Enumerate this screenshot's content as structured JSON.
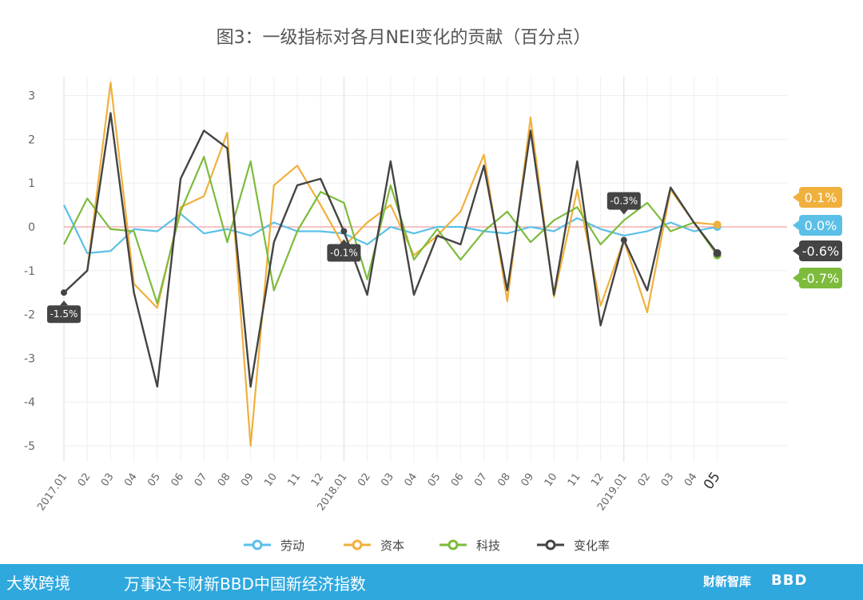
{
  "chart_data": {
    "type": "line",
    "title": "图3：一级指标对各月NEI变化的贡献（百分点）",
    "categories": [
      "2017.01",
      "02",
      "03",
      "04",
      "05",
      "06",
      "07",
      "08",
      "09",
      "10",
      "11",
      "12",
      "2018.01",
      "02",
      "03",
      "04",
      "05",
      "06",
      "07",
      "08",
      "09",
      "10",
      "11",
      "12",
      "2019.01",
      "02",
      "03",
      "04",
      "05"
    ],
    "ylim": [
      -5.4,
      3.4
    ],
    "yticks": [
      3,
      2,
      1,
      0,
      -1,
      -2,
      -3,
      -4,
      -5
    ],
    "xlabel": "",
    "ylabel": "",
    "grid": true,
    "legend_position": "bottom",
    "series": [
      {
        "name": "劳动",
        "color": "#5bc0e8",
        "values": [
          0.5,
          -0.6,
          -0.55,
          -0.05,
          -0.1,
          0.3,
          -0.15,
          -0.05,
          -0.2,
          0.1,
          -0.1,
          -0.1,
          -0.15,
          -0.4,
          0.0,
          -0.15,
          0.0,
          0.0,
          -0.1,
          -0.15,
          0.0,
          -0.1,
          0.2,
          -0.05,
          -0.2,
          -0.1,
          0.1,
          -0.1,
          0.0
        ],
        "end_label": "0.0%"
      },
      {
        "name": "资本",
        "color": "#f0b03c",
        "values": [
          -1.5,
          -1.0,
          3.3,
          -1.3,
          -1.85,
          0.45,
          0.7,
          2.15,
          -5.0,
          0.95,
          1.4,
          0.5,
          -0.45,
          0.1,
          0.5,
          -0.65,
          -0.2,
          0.35,
          1.65,
          -1.7,
          2.5,
          -1.6,
          0.85,
          -1.8,
          -0.3,
          -1.95,
          0.85,
          0.1,
          0.05
        ],
        "end_label": "0.1%"
      },
      {
        "name": "科技",
        "color": "#7dbb3c",
        "values": [
          -0.4,
          0.65,
          -0.05,
          -0.1,
          -1.75,
          0.35,
          1.6,
          -0.35,
          1.5,
          -1.45,
          -0.1,
          0.8,
          0.55,
          -1.2,
          0.95,
          -0.75,
          -0.05,
          -0.75,
          -0.1,
          0.35,
          -0.35,
          0.15,
          0.45,
          -0.4,
          0.15,
          0.55,
          -0.1,
          0.1,
          -0.65
        ],
        "end_label": "-0.7%"
      },
      {
        "name": "变化率",
        "color": "#444444",
        "values": [
          -1.5,
          -1.0,
          2.6,
          -1.5,
          -3.65,
          1.1,
          2.2,
          1.8,
          -3.65,
          -0.35,
          0.95,
          1.1,
          -0.1,
          -1.55,
          1.5,
          -1.55,
          -0.2,
          -0.4,
          1.4,
          -1.45,
          2.2,
          -1.55,
          1.5,
          -2.25,
          -0.3,
          -1.45,
          0.9,
          0.1,
          -0.6
        ],
        "end_label": "-0.6%"
      }
    ],
    "annotations": [
      {
        "index": 0,
        "value": -1.5,
        "label": "-1.5%"
      },
      {
        "index": 12,
        "value": -0.1,
        "label": "-0.1%"
      },
      {
        "index": 24,
        "value": -0.3,
        "label": "-0.3%"
      }
    ]
  },
  "footer": {
    "logo_text": "大数跨境",
    "tagline": "万事达卡财新BBD中国新经济指数",
    "brand_caixin": "财新智库",
    "brand_bbd": "BBD"
  }
}
